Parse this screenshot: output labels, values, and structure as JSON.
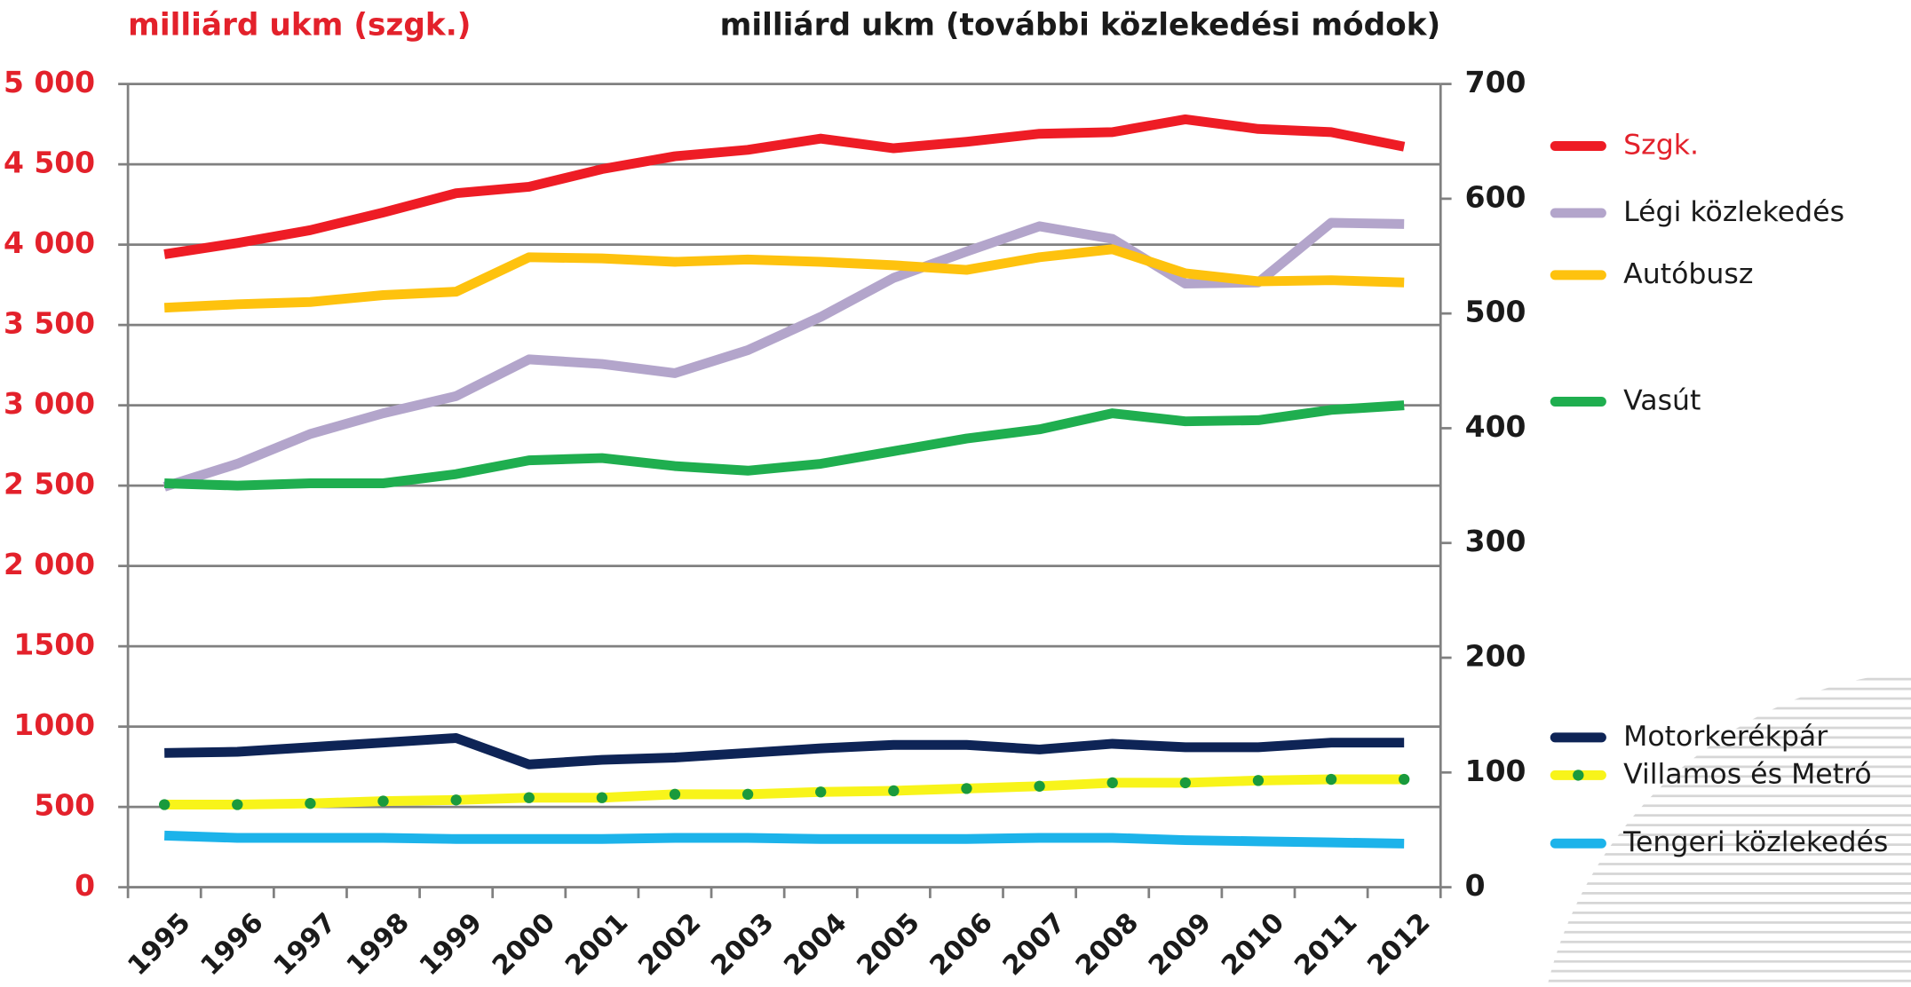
{
  "chart_data": {
    "type": "line",
    "y_label": "milliárd ukm (szgk.)",
    "y2_label": "milliárd ukm (további közlekedési módok)",
    "categories": [
      "1995",
      "1996",
      "1997",
      "1998",
      "1999",
      "2000",
      "2001",
      "2002",
      "2003",
      "2004",
      "2005",
      "2006",
      "2007",
      "2008",
      "2009",
      "2010",
      "2011",
      "2012"
    ],
    "ylim": [
      0,
      5000
    ],
    "yticks": [
      0,
      500,
      1000,
      1500,
      {
        "value": 2000,
        "label": "2 000"
      },
      {
        "value": 2500,
        "label": "2 500"
      },
      {
        "value": 3000,
        "label": "3 000"
      },
      {
        "value": 3500,
        "label": "3 500"
      },
      {
        "value": 4000,
        "label": "4 000"
      },
      {
        "value": 4500,
        "label": "4 500"
      },
      {
        "value": 5000,
        "label": "5 000"
      }
    ],
    "y2lim": [
      0,
      700
    ],
    "y2ticks": [
      0,
      100,
      200,
      300,
      400,
      500,
      600,
      700
    ],
    "grid": true,
    "legend": "right",
    "series": [
      {
        "name": "Szgk.",
        "color": "#ee1c25",
        "axis": "y",
        "values": [
          3940,
          4010,
          4090,
          4200,
          4320,
          4360,
          4470,
          4550,
          4590,
          4660,
          4600,
          4640,
          4690,
          4700,
          4780,
          4720,
          4700,
          4610
        ]
      },
      {
        "name": "Légi közlekedés",
        "color": "#b3a5cb",
        "axis": "y2",
        "values": [
          349,
          369,
          395,
          413,
          428,
          460,
          456,
          448,
          468,
          497,
          531,
          554,
          576,
          565,
          526,
          527,
          579,
          578
        ]
      },
      {
        "name": "Autóbusz",
        "color": "#fec20e",
        "axis": "y2",
        "values": [
          505,
          508,
          510,
          516,
          519,
          549,
          548,
          545,
          547,
          545,
          542,
          538,
          549,
          556,
          535,
          528,
          529,
          527
        ]
      },
      {
        "name": "Vasút",
        "color": "#1fae4f",
        "axis": "y2",
        "values": [
          352,
          350,
          352,
          352,
          360,
          372,
          374,
          367,
          363,
          369,
          380,
          391,
          399,
          413,
          406,
          407,
          416,
          420
        ]
      },
      {
        "name": "Motorkerékpár",
        "color": "#0e2456",
        "axis": "y2",
        "values": [
          117,
          118,
          122,
          126,
          130,
          107,
          111,
          113,
          117,
          121,
          124,
          124,
          120,
          125,
          122,
          122,
          126,
          126
        ]
      },
      {
        "name": "Villamos és Metró",
        "color": "#f8f41a",
        "marker_color": "#1a9a3c",
        "axis": "y2",
        "values": [
          72,
          72,
          73,
          75,
          76,
          78,
          78,
          81,
          81,
          83,
          84,
          86,
          88,
          91,
          91,
          93,
          94,
          94
        ]
      },
      {
        "name": "Tengeri közlekedés",
        "color": "#1cb3ea",
        "axis": "y2",
        "values": [
          45,
          43,
          43,
          43,
          42,
          42,
          42,
          43,
          43,
          42,
          42,
          42,
          43,
          43,
          41,
          40,
          39,
          38
        ]
      }
    ]
  }
}
